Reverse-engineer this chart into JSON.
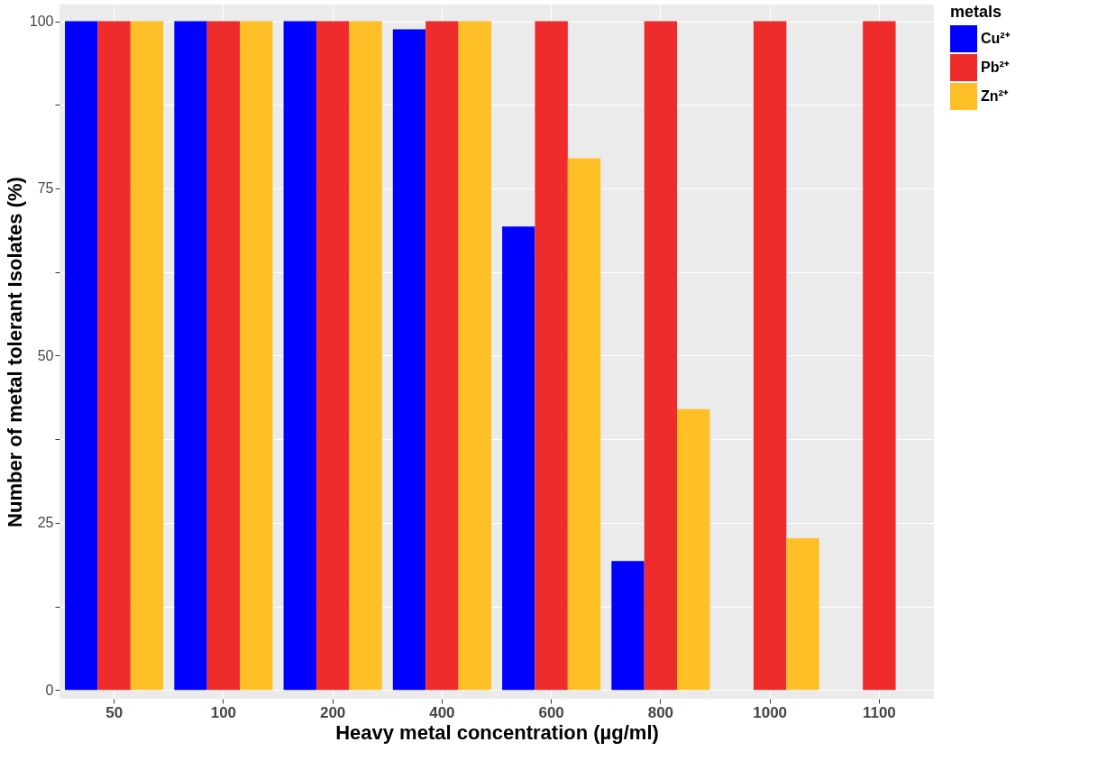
{
  "chart_data": {
    "type": "bar",
    "xlabel": "Heavy metal concentration (µg/ml)",
    "ylabel": "Number of metal tolerant Isolates (%)",
    "legend_title": "metals",
    "categories": [
      "50",
      "100",
      "200",
      "400",
      "600",
      "800",
      "1000",
      "1100"
    ],
    "series": [
      {
        "name": "Cu²⁺",
        "color": "#0000ff",
        "values": [
          100,
          100,
          100,
          98.8,
          69.3,
          19.3,
          0,
          0
        ]
      },
      {
        "name": "Pb²⁺",
        "color": "#ee2c2c",
        "values": [
          100,
          100,
          100,
          100,
          100,
          100,
          100,
          100
        ]
      },
      {
        "name": "Zn²⁺",
        "color": "#ffbf27",
        "values": [
          100,
          100,
          100,
          100,
          79.5,
          42.0,
          22.7,
          0
        ]
      }
    ],
    "ylim": [
      -1.3,
      102.5
    ],
    "yticks": [
      0,
      {
        "value": 12.5,
        "label": null
      },
      25,
      {
        "value": 37.5,
        "label": null
      },
      50,
      {
        "value": 62.5,
        "label": null
      },
      75,
      {
        "value": 87.5,
        "label": null
      },
      100
    ],
    "grid": true,
    "legend": "right"
  }
}
